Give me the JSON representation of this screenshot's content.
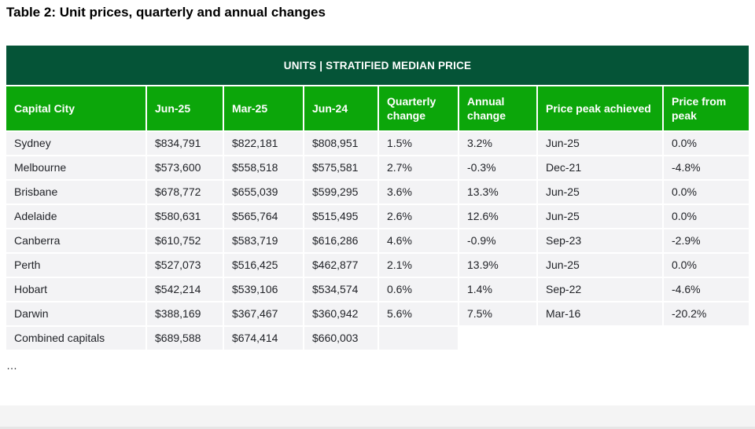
{
  "page": {
    "title": "Table 2: Unit prices, quarterly and annual changes",
    "truncation_ellipsis": "…"
  },
  "colors": {
    "banner_bg": "#055437",
    "header_bg": "#0ca60a",
    "row_bg": "#f3f3f5",
    "footer_bg": "#f4f4f4"
  },
  "table": {
    "banner_title": "UNITS | STRATIFIED MEDIAN PRICE",
    "columns": [
      "Capital City",
      "Jun-25",
      "Mar-25",
      "Jun-24",
      "Quarterly change",
      "Annual change",
      "Price peak achieved",
      "Price from peak"
    ],
    "rows": [
      [
        "Sydney",
        "$834,791",
        "$822,181",
        "$808,951",
        "1.5%",
        "3.2%",
        "Jun-25",
        "0.0%"
      ],
      [
        "Melbourne",
        "$573,600",
        "$558,518",
        "$575,581",
        "2.7%",
        "-0.3%",
        "Dec-21",
        "-4.8%"
      ],
      [
        "Brisbane",
        "$678,772",
        "$655,039",
        "$599,295",
        "3.6%",
        "13.3%",
        "Jun-25",
        "0.0%"
      ],
      [
        "Adelaide",
        "$580,631",
        "$565,764",
        "$515,495",
        "2.6%",
        "12.6%",
        "Jun-25",
        "0.0%"
      ],
      [
        "Canberra",
        "$610,752",
        "$583,719",
        "$616,286",
        "4.6%",
        "-0.9%",
        "Sep-23",
        "-2.9%"
      ],
      [
        "Perth",
        "$527,073",
        "$516,425",
        "$462,877",
        "2.1%",
        "13.9%",
        "Jun-25",
        "0.0%"
      ],
      [
        "Hobart",
        "$542,214",
        "$539,106",
        "$534,574",
        "0.6%",
        "1.4%",
        "Sep-22",
        "-4.6%"
      ],
      [
        "Darwin",
        "$388,169",
        "$367,467",
        "$360,942",
        "5.6%",
        "7.5%",
        "Mar-16",
        "-20.2%"
      ],
      [
        "Combined capitals",
        "$689,588",
        "$674,414",
        "$660,003",
        "",
        "",
        "",
        ""
      ]
    ]
  }
}
